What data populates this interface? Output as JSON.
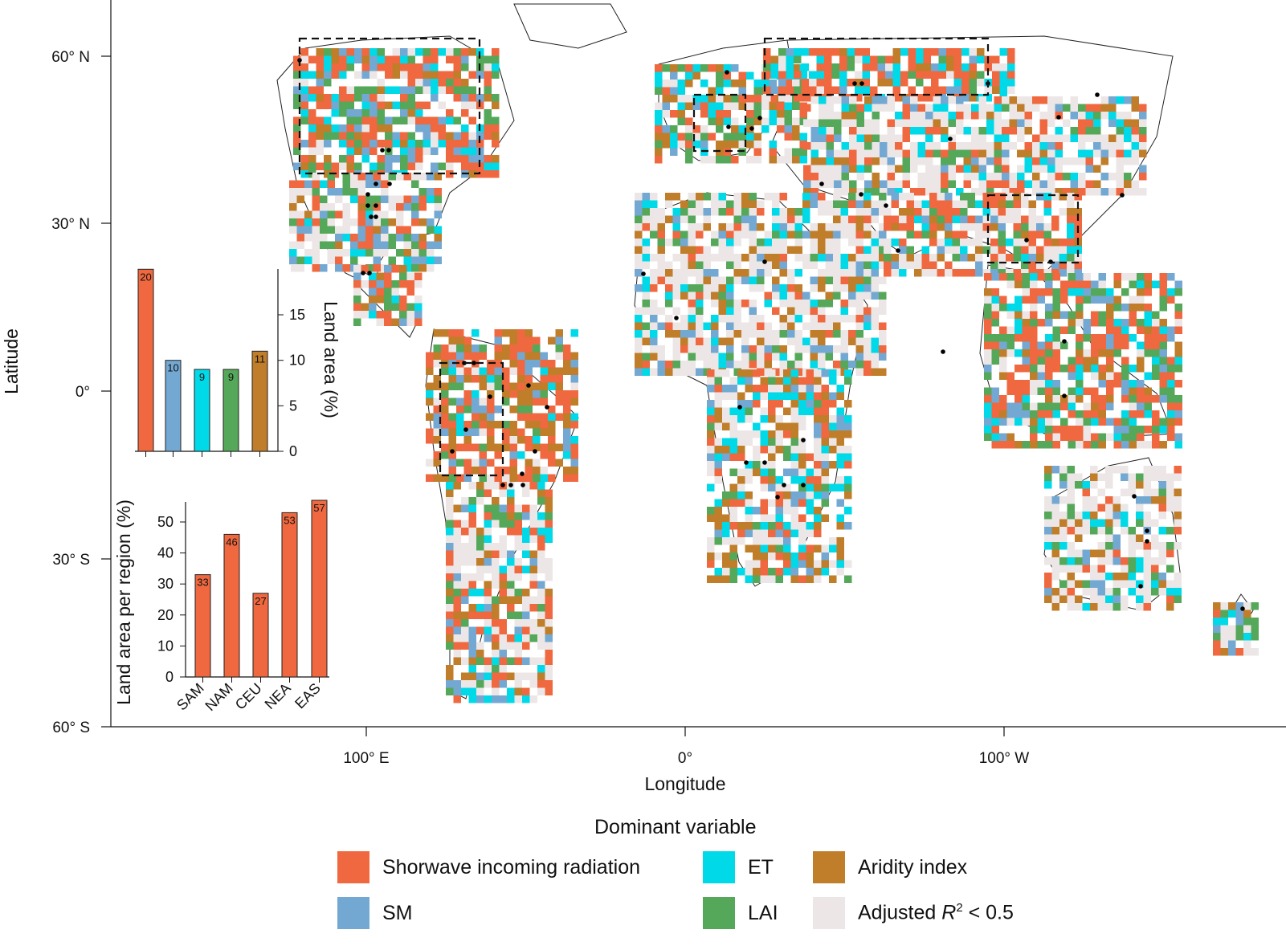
{
  "axes": {
    "y_ticks": [
      "60° N",
      "30° N",
      "0°",
      "30° S",
      "60° S"
    ],
    "x_ticks": [
      "100° E",
      "0°",
      "100° W"
    ],
    "y_title": "Latitude",
    "x_title": "Longitude"
  },
  "legend": {
    "title": "Dominant variable",
    "items": [
      {
        "key": "sw",
        "label": "Shorwave incoming radiation",
        "color": "#f0683f"
      },
      {
        "key": "et",
        "label": "ET",
        "color": "#00d9e8"
      },
      {
        "key": "ai",
        "label": "Aridity index",
        "color": "#c07d2a"
      },
      {
        "key": "sm",
        "label": "SM",
        "color": "#73a8d2"
      },
      {
        "key": "lai",
        "label": "LAI",
        "color": "#55a85a"
      },
      {
        "key": "r2",
        "label": "Adjusted",
        "label_sym": "R",
        "label_sup": "2",
        "label_tail": " < 0.5",
        "color": "#ece7e6"
      }
    ]
  },
  "inset_top": {
    "ylabel": "Land area (%)",
    "yticks": [
      "0",
      "5",
      "10",
      "15"
    ]
  },
  "inset_bottom": {
    "ylabel": "Land area per region (%)",
    "yticks": [
      "0",
      "10",
      "20",
      "30",
      "40",
      "50"
    ]
  },
  "chart_data": [
    {
      "type": "bar",
      "categories": [
        "Shorwave incoming radiation",
        "SM",
        "ET",
        "LAI",
        "Aridity index"
      ],
      "values": [
        20,
        10,
        9,
        9,
        11
      ],
      "data_labels": [
        "20",
        "10",
        "9",
        "9",
        "11"
      ],
      "colors": [
        "#f0683f",
        "#73a8d2",
        "#00d9e8",
        "#55a85a",
        "#c07d2a"
      ],
      "ylabel": "Land area (%)",
      "ylim": [
        0,
        20
      ]
    },
    {
      "type": "bar",
      "categories": [
        "SAM",
        "NAM",
        "CEU",
        "NEA",
        "EAS"
      ],
      "values": [
        33,
        46,
        27,
        53,
        57
      ],
      "data_labels": [
        "33",
        "46",
        "27",
        "53",
        "57"
      ],
      "colors": [
        "#f0683f",
        "#f0683f",
        "#f0683f",
        "#f0683f",
        "#f0683f"
      ],
      "ylabel": "Land area per region (%)",
      "ylim": [
        0,
        57
      ]
    }
  ]
}
